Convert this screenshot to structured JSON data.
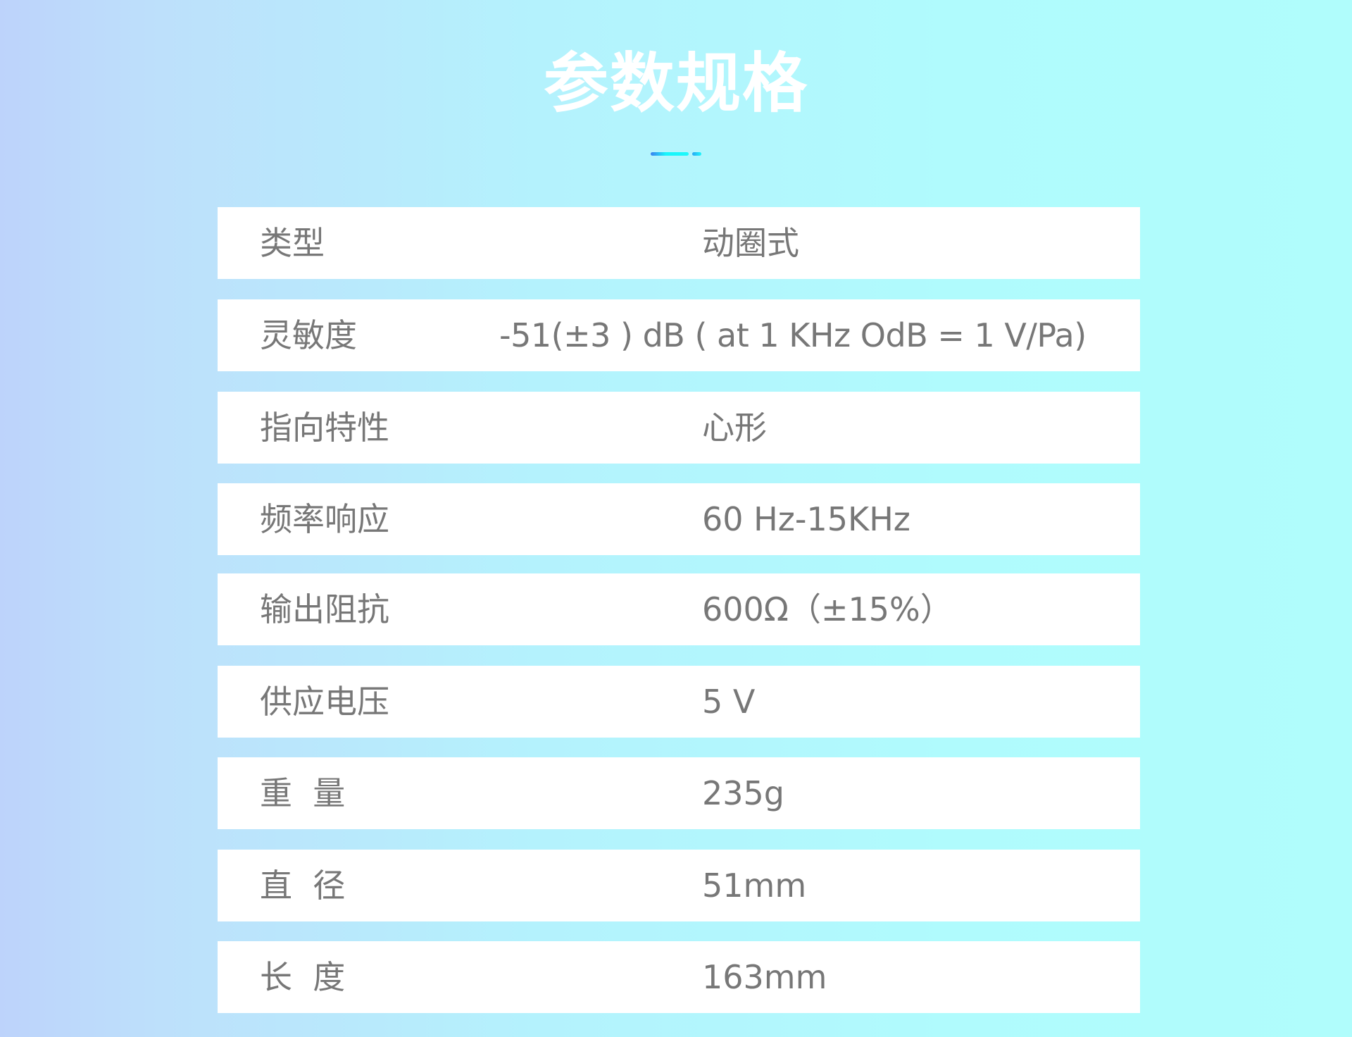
{
  "title": "参数规格",
  "colors": {
    "accent_start": "#3b7ff0",
    "accent_end": "#1cf8fb",
    "text": "#777777"
  },
  "specs": [
    {
      "label": "类型",
      "value": "动圈式"
    },
    {
      "label": "灵敏度",
      "value": "-51(±3 ) dB ( at 1 KHz OdB = 1 V/Pa)"
    },
    {
      "label": "指向特性",
      "value": "心形"
    },
    {
      "label": "频率响应",
      "value": "60 Hz-15KHz"
    },
    {
      "label": "输出阻抗",
      "value": "600Ω（±15%）"
    },
    {
      "label": "供应电压",
      "value": "5 V"
    },
    {
      "label": "重  量",
      "value": "235g"
    },
    {
      "label": "直  径",
      "value": "51mm"
    },
    {
      "label": "长  度",
      "value": "163mm"
    }
  ]
}
